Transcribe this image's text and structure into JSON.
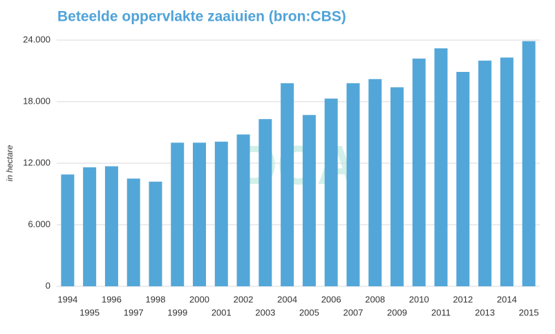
{
  "chart_data": {
    "type": "bar",
    "title": "Beteelde oppervlakte zaaiuien (bron:CBS)",
    "y_label": "in hectare",
    "watermark": "DCA",
    "categories": [
      "1994",
      "1995",
      "1996",
      "1997",
      "1998",
      "1999",
      "2000",
      "2001",
      "2002",
      "2003",
      "2004",
      "2005",
      "2006",
      "2007",
      "2008",
      "2009",
      "2010",
      "2011",
      "2012",
      "2013",
      "2014",
      "2015"
    ],
    "values": [
      10900,
      11600,
      11700,
      10500,
      10200,
      14000,
      14000,
      14100,
      14800,
      16300,
      19800,
      16700,
      18300,
      19800,
      20200,
      19400,
      22200,
      23200,
      20900,
      22000,
      22300,
      23900
    ],
    "color": "#53a7d8",
    "ylim": [
      0,
      24000
    ],
    "yticks": [
      0,
      {
        "value": 6000,
        "label": "6.000"
      },
      {
        "value": 12000,
        "label": "12.000"
      },
      {
        "value": 18000,
        "label": "18.000"
      },
      {
        "value": 24000,
        "label": "24.000"
      }
    ],
    "grid": true
  }
}
